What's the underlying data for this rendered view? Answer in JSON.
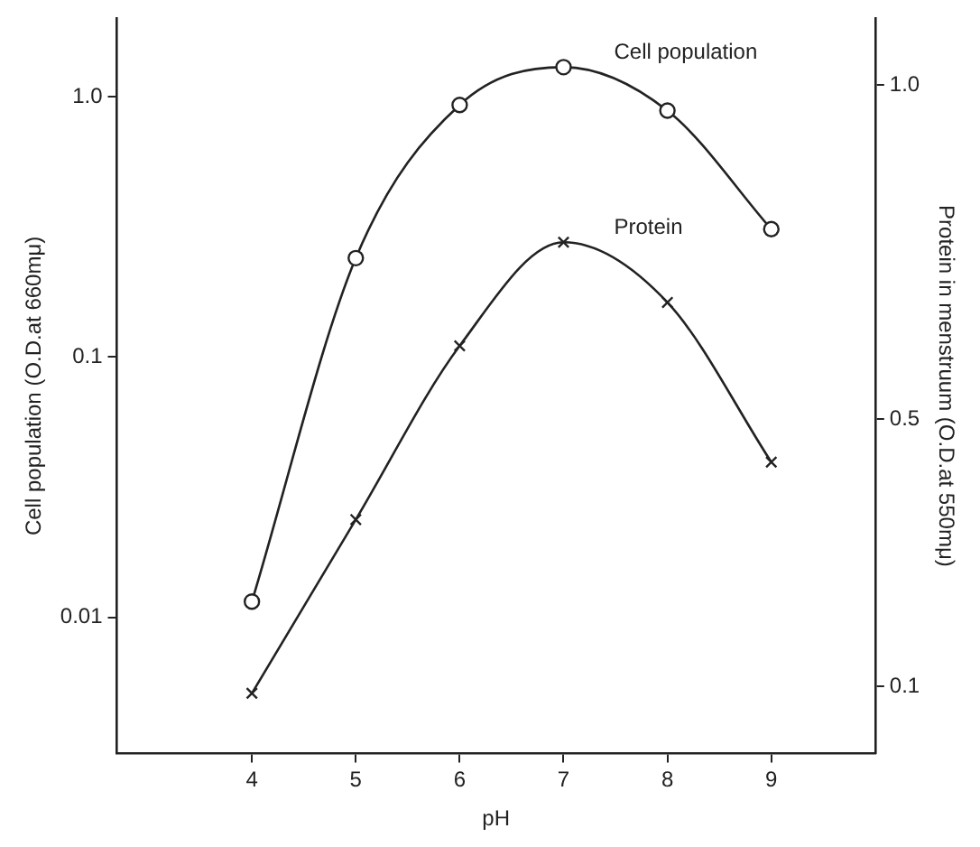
{
  "chart_data": {
    "type": "line",
    "xlabel": "pH",
    "ylabel": "Cell population (O.D.at 660mμ)",
    "y2label": "Protein in menstruum (O.D.at 550mμ)",
    "x": [
      4,
      5,
      6,
      7,
      8,
      9
    ],
    "xlim": [
      2.7,
      10
    ],
    "xticks": [
      4,
      5,
      6,
      7,
      8,
      9
    ],
    "log": "y",
    "ylim": [
      0.003,
      2
    ],
    "yticks": [
      0.01,
      0.1,
      {
        "value": 1,
        "label": "1.0"
      }
    ],
    "y2lim": [
      0,
      1.1
    ],
    "y2ticks": [
      0.1,
      0.5,
      {
        "value": 1,
        "label": "1.0"
      }
    ],
    "grid": false,
    "legend": false,
    "line_style": "solid",
    "series": [
      {
        "name": "Cell population",
        "color": "#222222",
        "marker": "circle",
        "values": [
          0.0115,
          0.24,
          0.93,
          1.3,
          0.885,
          0.31
        ]
      },
      {
        "name": "Protein",
        "color": "#222222",
        "marker": "cross",
        "axis": "y2",
        "values": [
          0.09,
          0.35,
          0.61,
          0.765,
          0.675,
          0.436
        ]
      }
    ]
  }
}
